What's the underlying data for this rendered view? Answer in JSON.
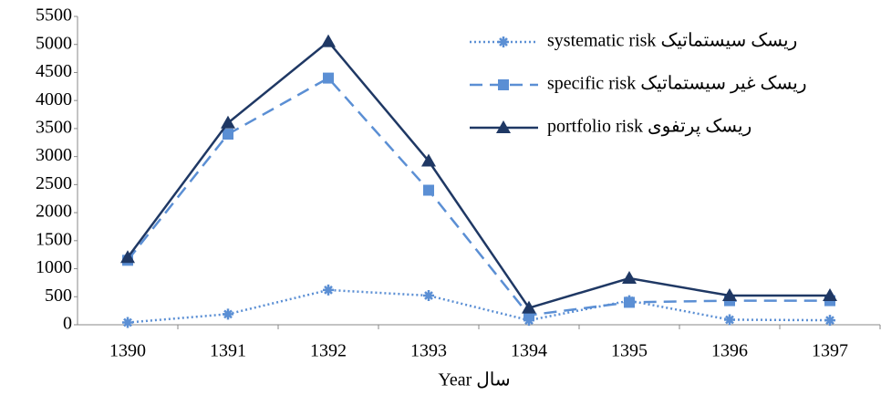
{
  "chart_data": {
    "type": "line",
    "x_label": "Year سال",
    "categories": [
      "1390",
      "1391",
      "1392",
      "1393",
      "1394",
      "1395",
      "1396",
      "1397"
    ],
    "series": [
      {
        "name": "systematic risk ریسک سیستماتیک",
        "color": "#5b8fd4",
        "marker": "star",
        "dash": "dotted",
        "values": [
          40,
          190,
          620,
          520,
          80,
          430,
          90,
          80
        ]
      },
      {
        "name": "specific risk  ریسک غیر سیستماتیک",
        "color": "#5b8fd4",
        "marker": "square",
        "dash": "dashed",
        "values": [
          1150,
          3400,
          4400,
          2400,
          170,
          400,
          430,
          430
        ]
      },
      {
        "name": "portfolio risk ریسک پرتفوی",
        "color": "#1f3864",
        "marker": "triangle",
        "dash": "solid",
        "values": [
          1200,
          3600,
          5050,
          2920,
          300,
          830,
          520,
          520
        ]
      }
    ],
    "ylim": [
      0,
      5500
    ],
    "yticks": [
      0,
      500,
      1000,
      1500,
      2000,
      2500,
      3000,
      3500,
      4000,
      4500,
      5000,
      5500
    ],
    "grid": false,
    "legend": "top-right"
  }
}
